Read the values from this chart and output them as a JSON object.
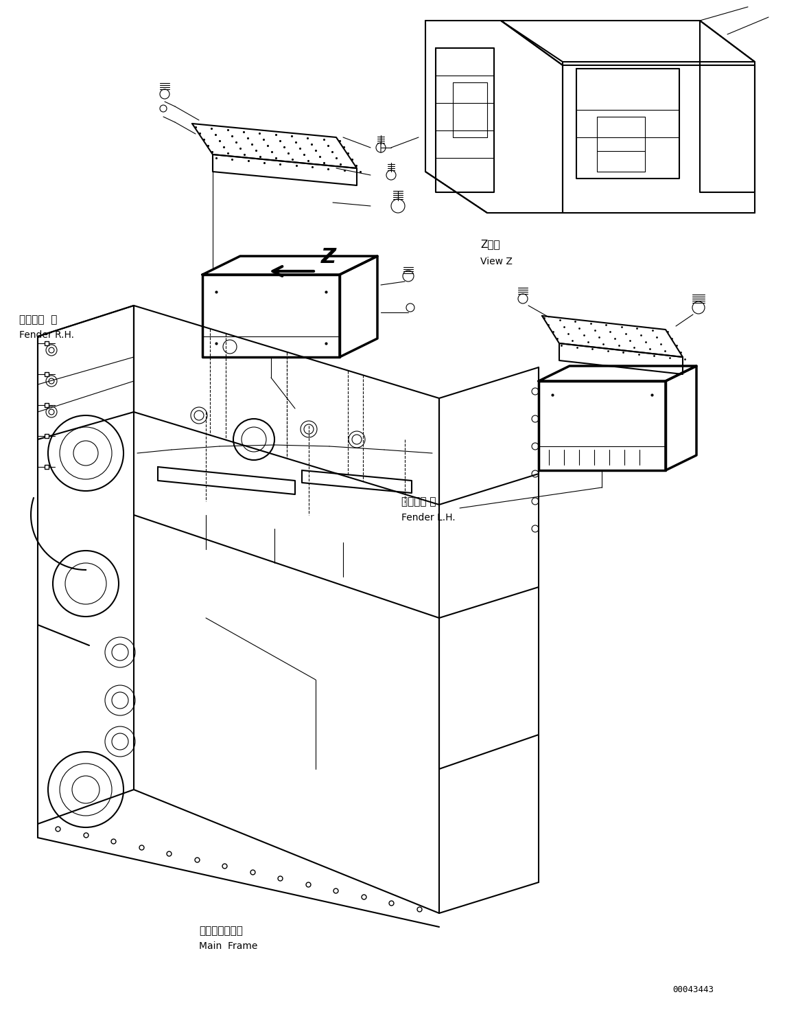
{
  "bg_color": "#ffffff",
  "line_color": "#000000",
  "labels": {
    "fender_rh_jp": "フェンダ  右",
    "fender_rh_en": "Fender R.H.",
    "fender_lh_jp": "フェンダ 左",
    "fender_lh_en": "Fender L.H.",
    "main_frame_jp": "メインフレーム",
    "main_frame_en": "Main  Frame",
    "view_z_jp": "Z　視",
    "view_z_en": "View Z",
    "part_number": "00043443",
    "z_label": "Z"
  }
}
